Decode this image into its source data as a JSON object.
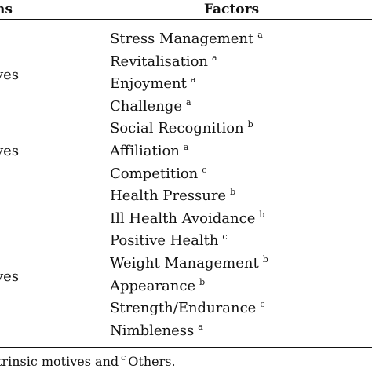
{
  "table": {
    "headers": {
      "left": "ns",
      "right": "Factors"
    },
    "groups": [
      {
        "label": "ves",
        "top": 84
      },
      {
        "label": "ves",
        "top": 181
      },
      {
        "label": "ves",
        "top": 341
      }
    ],
    "factors": [
      {
        "name": "Stress Management",
        "mark": "a"
      },
      {
        "name": "Revitalisation",
        "mark": "a"
      },
      {
        "name": "Enjoyment",
        "mark": "a"
      },
      {
        "name": "Challenge",
        "mark": "a"
      },
      {
        "name": "Social Recognition",
        "mark": "b"
      },
      {
        "name": "Affiliation",
        "mark": "a"
      },
      {
        "name": "Competition",
        "mark": "c"
      },
      {
        "name": "Health Pressure",
        "mark": "b"
      },
      {
        "name": "Ill Health Avoidance",
        "mark": "b"
      },
      {
        "name": "Positive Health",
        "mark": "c"
      },
      {
        "name": "Weight Management",
        "mark": "b"
      },
      {
        "name": "Appearance",
        "mark": "b"
      },
      {
        "name": "Strength/Endurance",
        "mark": "c"
      },
      {
        "name": "Nimbleness",
        "mark": "a"
      }
    ]
  },
  "footnote": {
    "text_before": "trinsic motives and",
    "mark": "c",
    "text_after": "Others."
  }
}
